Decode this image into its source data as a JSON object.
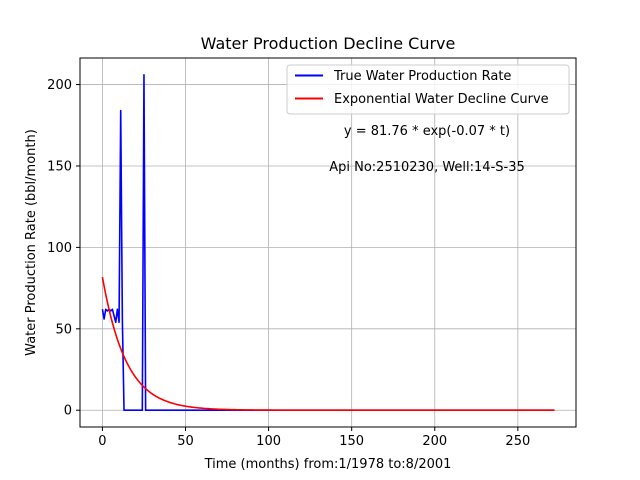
{
  "chart_data": {
    "type": "line",
    "title": "Water Production Decline Curve",
    "xlabel": "Time (months) from:1/1978 to:8/2001",
    "ylabel": "Water Production Rate (bbl/month)",
    "xlim": [
      -13.5,
      285
    ],
    "ylim": [
      -10.3,
      216.3
    ],
    "xticks": [
      0,
      50,
      100,
      150,
      200,
      250
    ],
    "yticks": [
      0,
      50,
      100,
      150,
      200
    ],
    "grid": true,
    "legend_position": "top-right",
    "annotations": [
      "y = 81.76 * exp(-0.07 * t)",
      "Api No:2510230, Well:14-S-35"
    ],
    "series": [
      {
        "name": "True Water Production Rate",
        "color": "#0000ff",
        "points": [
          [
            0,
            62
          ],
          [
            1,
            56
          ],
          [
            2,
            62
          ],
          [
            3,
            61
          ],
          [
            4,
            62
          ],
          [
            5,
            61
          ],
          [
            6,
            62
          ],
          [
            7,
            58
          ],
          [
            8,
            54
          ],
          [
            9,
            62
          ],
          [
            10,
            54
          ],
          [
            11,
            184
          ],
          [
            12,
            55
          ],
          [
            13,
            0
          ],
          [
            24,
            0
          ],
          [
            25,
            206
          ],
          [
            26,
            0
          ],
          [
            272,
            0
          ]
        ]
      },
      {
        "name": "Exponential Water Decline Curve",
        "color": "#ff0000",
        "model": {
          "a": 81.76,
          "b": -0.07,
          "t_start": 0,
          "t_end": 272
        }
      }
    ]
  }
}
